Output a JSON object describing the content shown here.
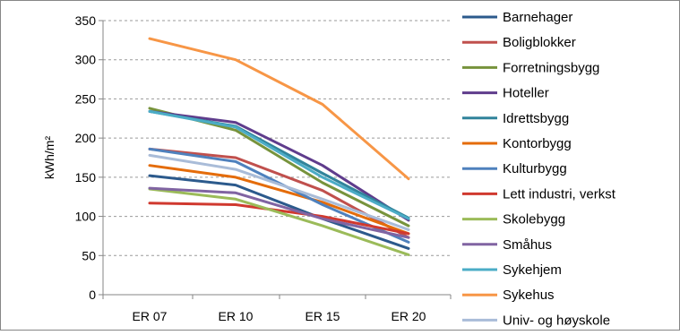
{
  "chart_data": {
    "type": "line",
    "ylabel": "kWh/m²",
    "xlabel": "",
    "title": "",
    "categories": [
      "ER 07",
      "ER 10",
      "ER 15",
      "ER 20"
    ],
    "ylim": [
      0,
      350
    ],
    "yticks": [
      0,
      50,
      100,
      150,
      200,
      250,
      300,
      350
    ],
    "grid": "horizontal dashed",
    "legend_position": "right",
    "series": [
      {
        "name": "Barnehager",
        "color": "#2c5a8c",
        "values": [
          152,
          140,
          97,
          59
        ]
      },
      {
        "name": "Boligblokker",
        "color": "#c0504d",
        "values": [
          186,
          175,
          133,
          73
        ]
      },
      {
        "name": "Forretningsbygg",
        "color": "#77933c",
        "values": [
          238,
          210,
          143,
          88
        ]
      },
      {
        "name": "Hoteller",
        "color": "#5f3c8c",
        "values": [
          234,
          220,
          165,
          95
        ]
      },
      {
        "name": "Idrettsbygg",
        "color": "#31849b",
        "values": [
          234,
          215,
          155,
          98
        ]
      },
      {
        "name": "Kontorbygg",
        "color": "#e46c0a",
        "values": [
          165,
          150,
          118,
          78
        ]
      },
      {
        "name": "Kulturbygg",
        "color": "#4f81bd",
        "values": [
          186,
          170,
          115,
          67
        ]
      },
      {
        "name": "Lett industri, verkst",
        "color": "#d0392f",
        "values": [
          117,
          115,
          100,
          78
        ]
      },
      {
        "name": "Skolebygg",
        "color": "#9bbb59",
        "values": [
          135,
          122,
          88,
          51
        ]
      },
      {
        "name": "Småhus",
        "color": "#8064a2",
        "values": [
          136,
          130,
          97,
          73
        ]
      },
      {
        "name": "Sykehjem",
        "color": "#4bacc6",
        "values": [
          234,
          214,
          150,
          97
        ]
      },
      {
        "name": "Sykehus",
        "color": "#f79646",
        "values": [
          327,
          300,
          243,
          148
        ]
      },
      {
        "name": "Univ- og høyskole",
        "color": "#a9bcd8",
        "values": [
          178,
          160,
          122,
          83
        ]
      }
    ]
  }
}
